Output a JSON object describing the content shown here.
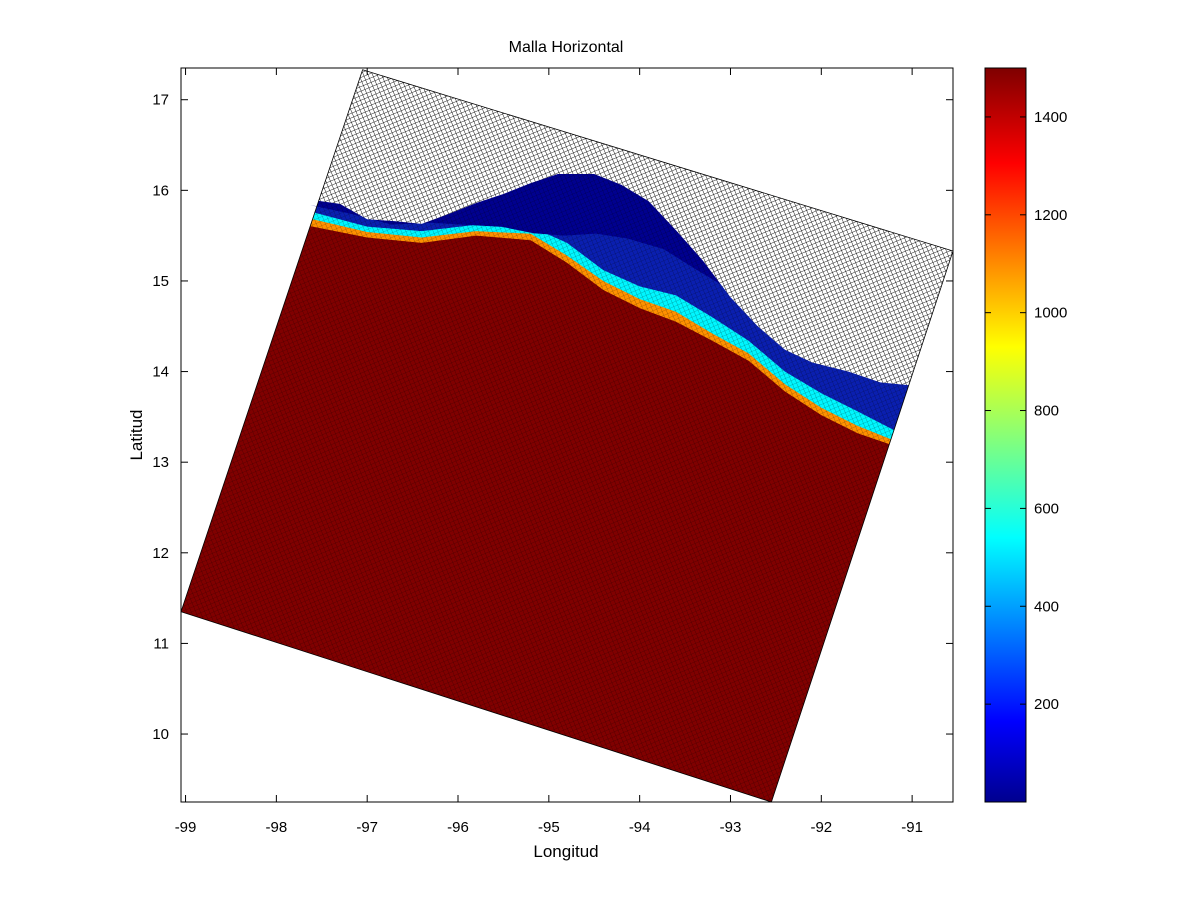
{
  "chart_data": {
    "type": "heatmap",
    "title": "Malla Horizontal",
    "xlabel": "Longitud",
    "ylabel": "Latitud",
    "xlim": [
      -99.05,
      -90.55
    ],
    "ylim": [
      9.25,
      17.35
    ],
    "xticks": [
      -99,
      -98,
      -97,
      -96,
      -95,
      -94,
      -93,
      -92,
      -91
    ],
    "yticks": [
      10,
      11,
      12,
      13,
      14,
      15,
      16,
      17
    ],
    "grid": false,
    "colormap": "jet",
    "colorbar": {
      "range": [
        0,
        1500
      ],
      "ticks": [
        200,
        400,
        600,
        800,
        1000,
        1200,
        1400
      ]
    },
    "domain_corners": [
      {
        "corner": "north",
        "lon": -97.05,
        "lat": 17.33
      },
      {
        "corner": "east",
        "lon": -90.55,
        "lat": 15.33
      },
      {
        "corner": "south",
        "lon": -92.55,
        "lat": 9.25
      },
      {
        "corner": "west",
        "lon": -99.05,
        "lat": 11.35
      }
    ],
    "land_mask": "white cells north of the coastline",
    "coastline": [
      {
        "lon": -97.65,
        "lat": 15.9
      },
      {
        "lon": -97.3,
        "lat": 15.85
      },
      {
        "lon": -97.0,
        "lat": 15.68
      },
      {
        "lon": -96.7,
        "lat": 15.66
      },
      {
        "lon": -96.4,
        "lat": 15.63
      },
      {
        "lon": -96.1,
        "lat": 15.74
      },
      {
        "lon": -95.8,
        "lat": 15.86
      },
      {
        "lon": -95.5,
        "lat": 15.96
      },
      {
        "lon": -95.2,
        "lat": 16.08
      },
      {
        "lon": -94.9,
        "lat": 16.18
      },
      {
        "lon": -94.5,
        "lat": 16.18
      },
      {
        "lon": -94.2,
        "lat": 16.06
      },
      {
        "lon": -93.9,
        "lat": 15.88
      },
      {
        "lon": -93.6,
        "lat": 15.56
      },
      {
        "lon": -93.3,
        "lat": 15.22
      },
      {
        "lon": -93.0,
        "lat": 14.82
      },
      {
        "lon": -92.7,
        "lat": 14.5
      },
      {
        "lon": -92.4,
        "lat": 14.24
      },
      {
        "lon": -92.1,
        "lat": 14.1
      },
      {
        "lon": -91.7,
        "lat": 14.0
      },
      {
        "lon": -91.35,
        "lat": 13.88
      },
      {
        "lon": -91.03,
        "lat": 13.85
      }
    ],
    "depth_contours": [
      {
        "depth": 200,
        "points": [
          {
            "lon": -97.6,
            "lat": 15.76
          },
          {
            "lon": -97.0,
            "lat": 15.6
          },
          {
            "lon": -96.4,
            "lat": 15.55
          },
          {
            "lon": -95.8,
            "lat": 15.62
          },
          {
            "lon": -95.2,
            "lat": 15.6
          },
          {
            "lon": -94.8,
            "lat": 15.42
          },
          {
            "lon": -94.4,
            "lat": 15.12
          },
          {
            "lon": -94.0,
            "lat": 14.94
          },
          {
            "lon": -93.6,
            "lat": 14.84
          },
          {
            "lon": -93.2,
            "lat": 14.6
          },
          {
            "lon": -92.8,
            "lat": 14.34
          },
          {
            "lon": -92.4,
            "lat": 14.0
          },
          {
            "lon": -92.0,
            "lat": 13.76
          },
          {
            "lon": -91.6,
            "lat": 13.56
          },
          {
            "lon": -91.25,
            "lat": 13.38
          }
        ]
      },
      {
        "depth": 600,
        "points": [
          {
            "lon": -97.6,
            "lat": 15.68
          },
          {
            "lon": -97.0,
            "lat": 15.54
          },
          {
            "lon": -96.4,
            "lat": 15.48
          },
          {
            "lon": -95.8,
            "lat": 15.55
          },
          {
            "lon": -95.2,
            "lat": 15.52
          },
          {
            "lon": -94.8,
            "lat": 15.28
          },
          {
            "lon": -94.4,
            "lat": 15.0
          },
          {
            "lon": -94.0,
            "lat": 14.8
          },
          {
            "lon": -93.6,
            "lat": 14.66
          },
          {
            "lon": -93.2,
            "lat": 14.42
          },
          {
            "lon": -92.8,
            "lat": 14.2
          },
          {
            "lon": -92.4,
            "lat": 13.86
          },
          {
            "lon": -92.0,
            "lat": 13.6
          },
          {
            "lon": -91.6,
            "lat": 13.4
          },
          {
            "lon": -91.25,
            "lat": 13.26
          }
        ]
      },
      {
        "depth": 1400,
        "points": [
          {
            "lon": -97.6,
            "lat": 15.6
          },
          {
            "lon": -97.0,
            "lat": 15.48
          },
          {
            "lon": -96.4,
            "lat": 15.42
          },
          {
            "lon": -95.8,
            "lat": 15.5
          },
          {
            "lon": -95.2,
            "lat": 15.45
          },
          {
            "lon": -94.8,
            "lat": 15.2
          },
          {
            "lon": -94.4,
            "lat": 14.9
          },
          {
            "lon": -94.0,
            "lat": 14.7
          },
          {
            "lon": -93.6,
            "lat": 14.55
          },
          {
            "lon": -93.2,
            "lat": 14.34
          },
          {
            "lon": -92.8,
            "lat": 14.12
          },
          {
            "lon": -92.4,
            "lat": 13.78
          },
          {
            "lon": -92.0,
            "lat": 13.52
          },
          {
            "lon": -91.6,
            "lat": 13.32
          },
          {
            "lon": -91.25,
            "lat": 13.2
          }
        ]
      }
    ],
    "open_ocean_value": 1500
  },
  "colors": {
    "deep": "#7f0000",
    "shelf_dark": "#00008f",
    "shelf": "#0a1fb0",
    "land": "#ffffff",
    "mesh": "#000000"
  }
}
